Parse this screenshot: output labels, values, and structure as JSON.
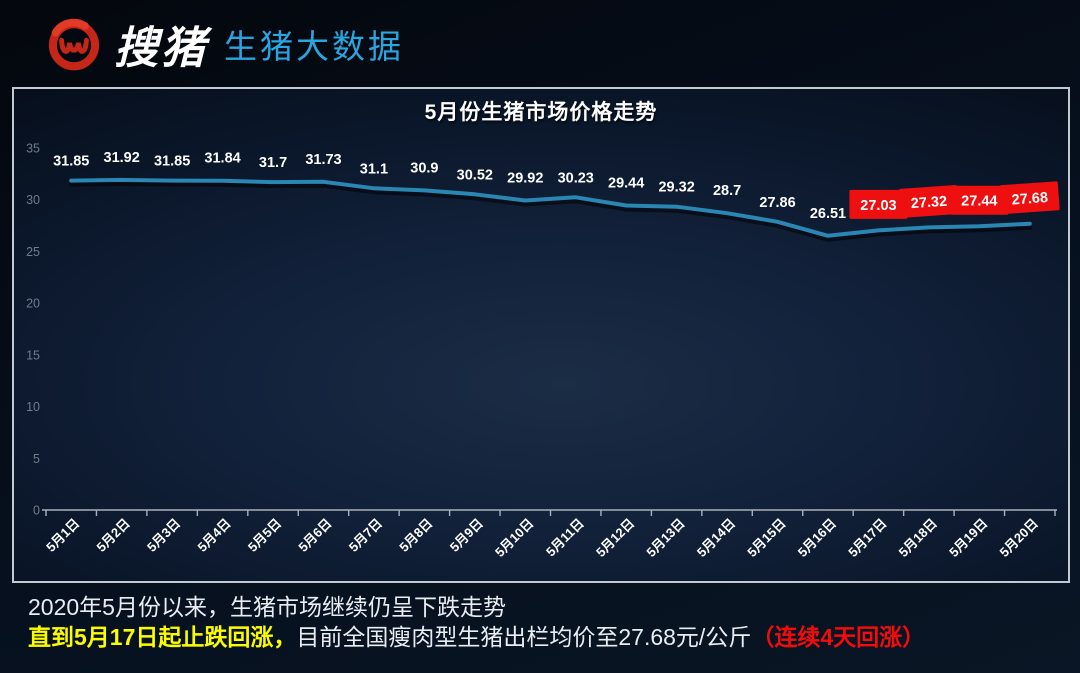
{
  "header": {
    "logo_text": "搜猪",
    "brand_text": "生猪大数据"
  },
  "chart_data": {
    "type": "line",
    "title": "5月份生猪市场价格走势",
    "categories": [
      "5月1日",
      "5月2日",
      "5月3日",
      "5月4日",
      "5月5日",
      "5月6日",
      "5月7日",
      "5月8日",
      "5月9日",
      "5月10日",
      "5月11日",
      "5月12日",
      "5月13日",
      "5月14日",
      "5月15日",
      "5月16日",
      "5月17日",
      "5月18日",
      "5月19日",
      "5月20日"
    ],
    "values": [
      31.85,
      31.92,
      31.85,
      31.84,
      31.7,
      31.73,
      31.1,
      30.9,
      30.52,
      29.92,
      30.23,
      29.44,
      29.32,
      28.7,
      27.86,
      26.51,
      27.03,
      27.32,
      27.44,
      27.68
    ],
    "labels": [
      "31.85",
      "31.92",
      "31.85",
      "31.84",
      "31.7",
      "31.73",
      "31.1",
      "30.9",
      "30.52",
      "29.92",
      "30.23",
      "29.44",
      "29.32",
      "28.7",
      "27.86",
      "26.51",
      "27.03",
      "27.32",
      "27.44",
      "27.68"
    ],
    "ylim": [
      0,
      35
    ],
    "yticks": [
      0,
      5,
      10,
      15,
      20,
      25,
      30,
      35
    ],
    "grid": false,
    "legend": "none",
    "line_color": "#2a86b2",
    "highlight_start_index": 16,
    "highlight_bg": "#ee1010",
    "highlight_text_color": "#ffffff"
  },
  "footer": {
    "line1": "2020年5月份以来，生猪市场继续仍呈下跌走势",
    "line2_yellow": "直到5月17日起止跌回涨，",
    "line2_white": "目前全国瘦肉型生猪出栏均价至27.68元/公斤",
    "line2_red": "（连续4天回涨）"
  },
  "colors": {
    "brand_blue": "#29a6e0",
    "logo_red": "#c62618",
    "panel_border": "#c3c9d0",
    "highlight_red": "#ee1010",
    "note_yellow": "#fcfc00"
  }
}
